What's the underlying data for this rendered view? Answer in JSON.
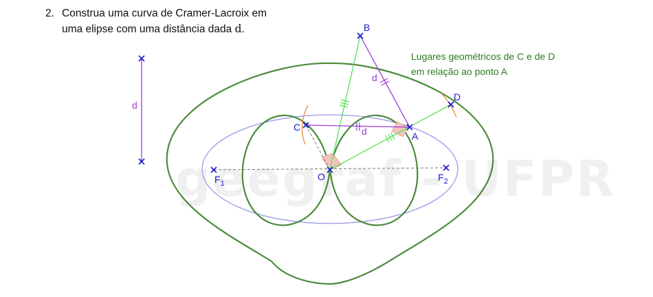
{
  "problem": {
    "number": "2.",
    "line1": "Construa uma curva de Cramer-Lacroix em",
    "line2_prefix": "uma elipse com uma distância dada ",
    "line2_var": "d",
    "line2_suffix": "."
  },
  "watermark": "geegraf - UFPR",
  "note": {
    "line1": "Lugares geométricos de C e de D",
    "line2": "em relação ao ponto A"
  },
  "labels": {
    "B": "B",
    "C": "C",
    "A": "A",
    "D": "D",
    "O": "O",
    "F1_main": "F",
    "F1_sub": "1",
    "F2_main": "F",
    "F2_sub": "2",
    "d_segment": "d",
    "d_AB": "d",
    "d_CA": "d"
  },
  "colors": {
    "outer_curve": "#4a8a3a",
    "inner_loops": "#4a8a3a",
    "ellipse": "#9a9ae8",
    "green_lines": "#55e055",
    "purple_lines": "#9a3ad8",
    "points": "#1a1acc",
    "arcs": "#e8933a",
    "angle_fill": "#f4c4bc",
    "note_text": "#2d7a1f"
  }
}
